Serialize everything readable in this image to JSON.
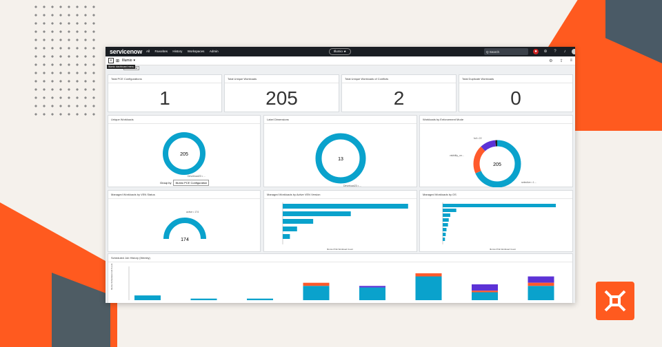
{
  "brand": "servicenow",
  "nav": [
    "All",
    "Favorites",
    "History",
    "Workspaces",
    "Admin"
  ],
  "app_pill": "Illumio ★",
  "search": "Q  Search",
  "breadcrumb": "Illumio",
  "tooltip": "Illumio dashboard menu",
  "tooltip_btn": "board View",
  "kpis": [
    {
      "title": "Total PCE Configurations",
      "value": "1"
    },
    {
      "title": "Total Unique Workloads",
      "value": "205"
    },
    {
      "title": "Total Unique Workloads of Conflicts",
      "value": "2"
    },
    {
      "title": "Total Duplicate Workloads",
      "value": "0"
    }
  ],
  "unique": {
    "title": "Unique Workloads",
    "center": "205",
    "label": "Devreload23 • ...",
    "group_label": "Group by",
    "group_value": "Illumio PCE Configuration"
  },
  "labels": {
    "title": "Label Dimensions",
    "center": "13",
    "label": "Devreload23 • ..."
  },
  "enforce": {
    "title": "Workloads by Enforcement Mode",
    "center": "205",
    "l1": "full • 22",
    "l2": "visibility_on...",
    "l3": "selective • 1...",
    "segments": [
      {
        "name": "selective",
        "value": 140,
        "color": "#0aa2cc"
      },
      {
        "name": "visibility_only",
        "value": 40,
        "color": "#ff5a2c"
      },
      {
        "name": "full",
        "value": 22,
        "color": "#5c32d6"
      },
      {
        "name": "idle",
        "value": 3,
        "color": "#222"
      }
    ]
  },
  "ven": {
    "title": "Managed Workloads by VEN Status",
    "center": "174",
    "label": "active • 174"
  },
  "venver": {
    "title": "Managed Workloads by Active VEN Version",
    "xlabel": "Illumio PCE Workload Count"
  },
  "os": {
    "title": "Managed Workloads by OS",
    "xlabel": "Illumio PCE Workload Count"
  },
  "sched": {
    "title": "Scheduled Job History (Weekly)",
    "ylabel": "Illumio Scheduled Job Count"
  },
  "chart_data": [
    {
      "type": "bar",
      "title": "Managed Workloads by Active VEN Version",
      "xlabel": "Illumio PCE Workload Count",
      "values": [
        70,
        38,
        17,
        8,
        4
      ],
      "xlim": [
        0,
        72
      ]
    },
    {
      "type": "bar",
      "title": "Managed Workloads by OS",
      "xlabel": "Illumio PCE Workload Count",
      "values": [
        150,
        18,
        10,
        8,
        7,
        5,
        4,
        3
      ],
      "xlim": [
        0,
        160
      ]
    },
    {
      "type": "bar",
      "title": "Scheduled Job History (Weekly)",
      "ylabel": "Illumio Scheduled Job Count",
      "ylim": [
        0,
        20
      ],
      "series": [
        {
          "color": "#0aa2cc",
          "values": [
            3,
            1,
            1,
            9,
            8,
            15,
            5,
            9
          ]
        },
        {
          "color": "#ff5a2c",
          "values": [
            0,
            0,
            0,
            2,
            0,
            2,
            1,
            2
          ]
        },
        {
          "color": "#5c32d6",
          "values": [
            0,
            0,
            0,
            0,
            1,
            0,
            4,
            4
          ]
        }
      ]
    }
  ]
}
